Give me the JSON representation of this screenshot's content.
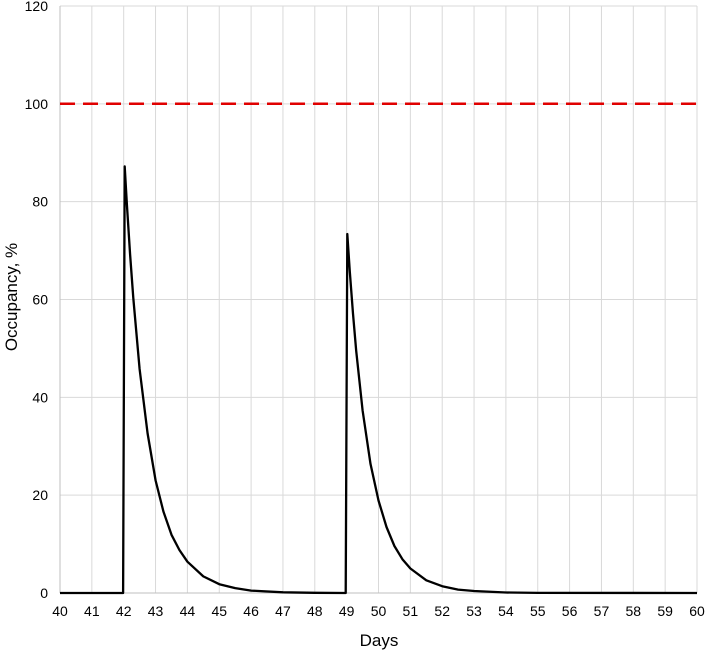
{
  "chart_data": {
    "type": "line",
    "title": "",
    "xlabel": "Days",
    "ylabel": "Occupancy, %",
    "xlim": [
      40,
      60
    ],
    "ylim": [
      0,
      120
    ],
    "x_ticks": [
      "40",
      "41",
      "42",
      "43",
      "44",
      "45",
      "46",
      "47",
      "48",
      "49",
      "50",
      "51",
      "52",
      "53",
      "54",
      "55",
      "56",
      "57",
      "58",
      "59",
      "60"
    ],
    "y_ticks": [
      "0",
      "20",
      "40",
      "60",
      "80",
      "100",
      "120"
    ],
    "grid": true,
    "legend": "none",
    "series": [
      {
        "color": "#000000",
        "style": "solid",
        "points": [
          [
            40,
            0
          ],
          [
            41.98,
            0
          ],
          [
            42.03,
            87.2
          ],
          [
            42.1,
            79.4
          ],
          [
            42.2,
            69.2
          ],
          [
            42.3,
            60.3
          ],
          [
            42.5,
            45.8
          ],
          [
            42.75,
            32.6
          ],
          [
            43,
            23.0
          ],
          [
            43.25,
            16.6
          ],
          [
            43.5,
            11.9
          ],
          [
            43.75,
            8.8
          ],
          [
            44,
            6.4
          ],
          [
            44.5,
            3.4
          ],
          [
            45,
            1.8
          ],
          [
            45.5,
            1.0
          ],
          [
            46,
            0.5
          ],
          [
            47,
            0.15
          ],
          [
            48,
            0.05
          ],
          [
            48.97,
            0
          ],
          [
            49.02,
            73.4
          ],
          [
            49.1,
            65.7
          ],
          [
            49.2,
            57.1
          ],
          [
            49.3,
            49.5
          ],
          [
            49.5,
            37.3
          ],
          [
            49.75,
            26.4
          ],
          [
            50,
            18.9
          ],
          [
            50.25,
            13.5
          ],
          [
            50.5,
            9.6
          ],
          [
            50.75,
            6.9
          ],
          [
            51,
            5.0
          ],
          [
            51.5,
            2.6
          ],
          [
            52,
            1.4
          ],
          [
            52.5,
            0.7
          ],
          [
            53,
            0.4
          ],
          [
            54,
            0.1
          ],
          [
            55,
            0.03
          ],
          [
            60,
            0
          ]
        ]
      },
      {
        "color": "#e00000",
        "style": "dashed",
        "points": [
          [
            40,
            100
          ],
          [
            60,
            100
          ]
        ]
      }
    ]
  }
}
